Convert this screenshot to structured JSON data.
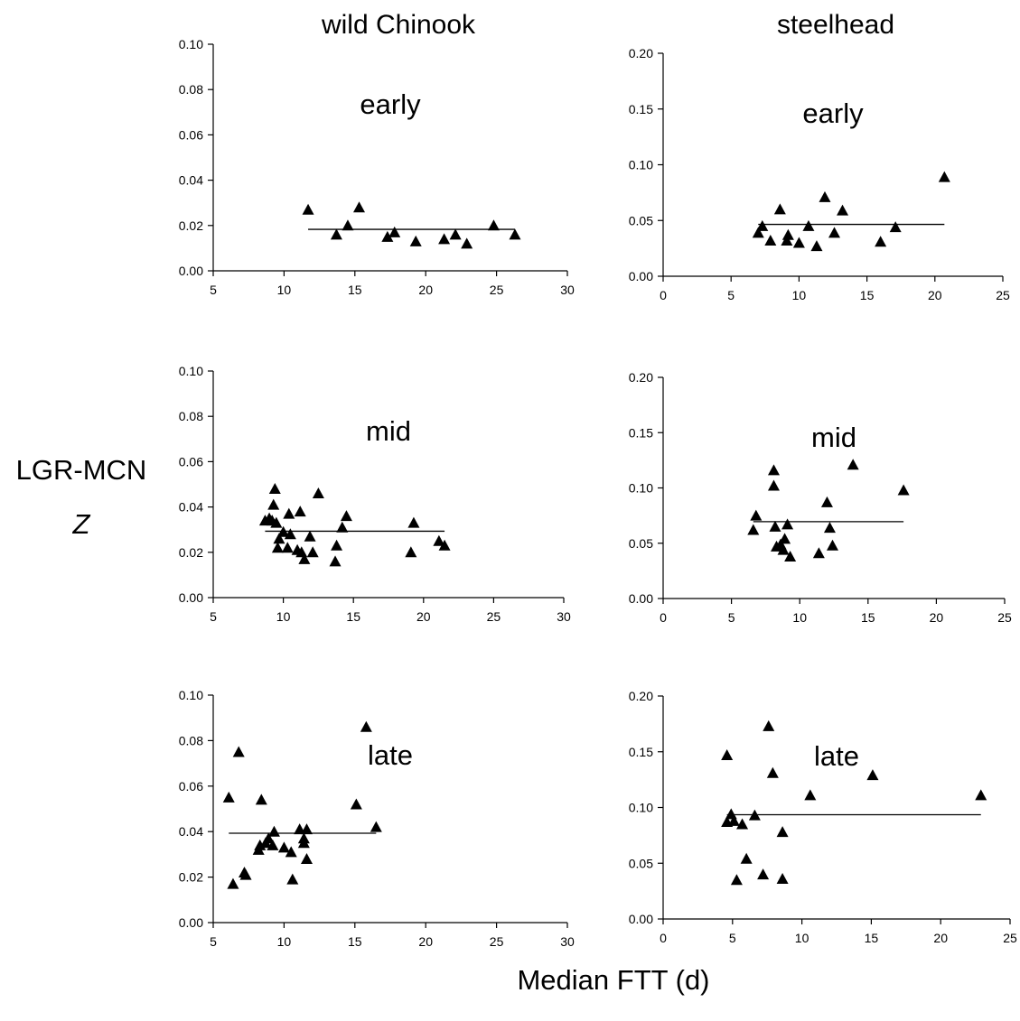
{
  "figure": {
    "column_titles": [
      "wild Chinook",
      "steelhead"
    ],
    "ylabel_line1": "LGR-MCN",
    "ylabel_line2": "Z",
    "xlabel": "Median FTT (d)"
  },
  "chart_data": [
    {
      "type": "scatter",
      "column": "wild Chinook",
      "title": "early",
      "xlim": [
        5,
        30
      ],
      "xticks": [
        5,
        10,
        15,
        20,
        25,
        30
      ],
      "ylim": [
        0,
        0.1
      ],
      "yticks": [
        0,
        0.02,
        0.04,
        0.06,
        0.08,
        0.1
      ],
      "ydecimals": 2,
      "points": [
        [
          11.7,
          0.027
        ],
        [
          13.7,
          0.016
        ],
        [
          14.5,
          0.02
        ],
        [
          15.3,
          0.028
        ],
        [
          17.3,
          0.015
        ],
        [
          17.8,
          0.017
        ],
        [
          19.3,
          0.013
        ],
        [
          21.3,
          0.014
        ],
        [
          22.1,
          0.016
        ],
        [
          22.9,
          0.012
        ],
        [
          24.8,
          0.02
        ],
        [
          26.3,
          0.016
        ]
      ],
      "fit": {
        "x": [
          11.7,
          26.3
        ],
        "y": [
          0.0183,
          0.0183
        ]
      },
      "grid": false,
      "legend": "none"
    },
    {
      "type": "scatter",
      "column": "steelhead",
      "title": "early",
      "xlim": [
        0,
        25
      ],
      "xticks": [
        0,
        5,
        10,
        15,
        20,
        25
      ],
      "ylim": [
        0,
        0.2
      ],
      "yticks": [
        0,
        0.05,
        0.1,
        0.15,
        0.2
      ],
      "ydecimals": 2,
      "points": [
        [
          7.0,
          0.039
        ],
        [
          7.3,
          0.045
        ],
        [
          7.9,
          0.032
        ],
        [
          8.6,
          0.06
        ],
        [
          9.1,
          0.032
        ],
        [
          9.2,
          0.037
        ],
        [
          10.0,
          0.03
        ],
        [
          10.7,
          0.045
        ],
        [
          11.3,
          0.027
        ],
        [
          11.9,
          0.071
        ],
        [
          12.6,
          0.039
        ],
        [
          13.2,
          0.059
        ],
        [
          16.0,
          0.031
        ],
        [
          17.1,
          0.044
        ],
        [
          20.7,
          0.089
        ]
      ],
      "fit": {
        "x": [
          7.0,
          20.7
        ],
        "y": [
          0.0465,
          0.0465
        ]
      },
      "grid": false,
      "legend": "none"
    },
    {
      "type": "scatter",
      "column": "wild Chinook",
      "title": "mid",
      "xlim": [
        5,
        30
      ],
      "xticks": [
        5,
        10,
        15,
        20,
        25,
        30
      ],
      "ylim": [
        0,
        0.1
      ],
      "yticks": [
        0,
        0.02,
        0.04,
        0.06,
        0.08,
        0.1
      ],
      "ydecimals": 2,
      "points": [
        [
          8.7,
          0.034
        ],
        [
          9.0,
          0.035
        ],
        [
          9.2,
          0.034
        ],
        [
          9.3,
          0.041
        ],
        [
          9.4,
          0.048
        ],
        [
          9.5,
          0.033
        ],
        [
          9.6,
          0.022
        ],
        [
          9.7,
          0.026
        ],
        [
          10.0,
          0.029
        ],
        [
          10.3,
          0.022
        ],
        [
          10.4,
          0.037
        ],
        [
          10.5,
          0.028
        ],
        [
          11.0,
          0.021
        ],
        [
          11.2,
          0.038
        ],
        [
          11.3,
          0.02
        ],
        [
          11.5,
          0.017
        ],
        [
          11.9,
          0.027
        ],
        [
          12.1,
          0.02
        ],
        [
          12.5,
          0.046
        ],
        [
          13.7,
          0.016
        ],
        [
          13.8,
          0.023
        ],
        [
          14.2,
          0.031
        ],
        [
          14.5,
          0.036
        ],
        [
          19.1,
          0.02
        ],
        [
          19.3,
          0.033
        ],
        [
          21.1,
          0.025
        ],
        [
          21.5,
          0.023
        ]
      ],
      "fit": {
        "x": [
          8.7,
          21.5
        ],
        "y": [
          0.0293,
          0.0293
        ]
      },
      "grid": false,
      "legend": "none"
    },
    {
      "type": "scatter",
      "column": "steelhead",
      "title": "mid",
      "xlim": [
        0,
        25
      ],
      "xticks": [
        0,
        5,
        10,
        15,
        20,
        25
      ],
      "ylim": [
        0,
        0.2
      ],
      "yticks": [
        0,
        0.05,
        0.1,
        0.15,
        0.2
      ],
      "ydecimals": 2,
      "points": [
        [
          6.6,
          0.062
        ],
        [
          6.8,
          0.075
        ],
        [
          8.1,
          0.116
        ],
        [
          8.1,
          0.102
        ],
        [
          8.2,
          0.065
        ],
        [
          8.3,
          0.047
        ],
        [
          8.6,
          0.049
        ],
        [
          8.8,
          0.044
        ],
        [
          8.9,
          0.054
        ],
        [
          9.1,
          0.067
        ],
        [
          9.3,
          0.038
        ],
        [
          11.4,
          0.041
        ],
        [
          12.0,
          0.087
        ],
        [
          12.2,
          0.064
        ],
        [
          12.4,
          0.048
        ],
        [
          13.9,
          0.121
        ],
        [
          17.6,
          0.098
        ]
      ],
      "fit": {
        "x": [
          6.6,
          17.6
        ],
        "y": [
          0.0695,
          0.0695
        ]
      },
      "grid": false,
      "legend": "none"
    },
    {
      "type": "scatter",
      "column": "wild Chinook",
      "title": "late",
      "xlim": [
        5,
        30
      ],
      "xticks": [
        5,
        10,
        15,
        20,
        25,
        30
      ],
      "ylim": [
        0,
        0.1
      ],
      "yticks": [
        0,
        0.02,
        0.04,
        0.06,
        0.08,
        0.1
      ],
      "ydecimals": 2,
      "points": [
        [
          6.1,
          0.055
        ],
        [
          6.4,
          0.017
        ],
        [
          6.8,
          0.075
        ],
        [
          7.2,
          0.022
        ],
        [
          7.3,
          0.021
        ],
        [
          8.2,
          0.032
        ],
        [
          8.3,
          0.034
        ],
        [
          8.4,
          0.054
        ],
        [
          8.7,
          0.035
        ],
        [
          8.9,
          0.037
        ],
        [
          9.2,
          0.034
        ],
        [
          9.3,
          0.04
        ],
        [
          10.0,
          0.033
        ],
        [
          10.5,
          0.031
        ],
        [
          10.6,
          0.019
        ],
        [
          11.1,
          0.041
        ],
        [
          11.4,
          0.035
        ],
        [
          11.4,
          0.037
        ],
        [
          11.6,
          0.028
        ],
        [
          11.6,
          0.041
        ],
        [
          15.1,
          0.052
        ],
        [
          15.8,
          0.086
        ],
        [
          16.5,
          0.042
        ]
      ],
      "fit": {
        "x": [
          6.1,
          16.5
        ],
        "y": [
          0.0393,
          0.0393
        ]
      },
      "grid": false,
      "legend": "none"
    },
    {
      "type": "scatter",
      "column": "steelhead",
      "title": "late",
      "xlim": [
        0,
        25
      ],
      "xticks": [
        0,
        5,
        10,
        15,
        20,
        25
      ],
      "ylim": [
        0,
        0.2
      ],
      "yticks": [
        0,
        0.05,
        0.1,
        0.15,
        0.2
      ],
      "ydecimals": 2,
      "points": [
        [
          4.6,
          0.147
        ],
        [
          4.6,
          0.087
        ],
        [
          4.9,
          0.094
        ],
        [
          5.1,
          0.088
        ],
        [
          5.3,
          0.035
        ],
        [
          5.7,
          0.085
        ],
        [
          6.0,
          0.054
        ],
        [
          6.6,
          0.093
        ],
        [
          7.2,
          0.04
        ],
        [
          7.6,
          0.173
        ],
        [
          7.9,
          0.131
        ],
        [
          8.6,
          0.078
        ],
        [
          8.6,
          0.036
        ],
        [
          10.6,
          0.111
        ],
        [
          15.1,
          0.129
        ],
        [
          22.9,
          0.111
        ]
      ],
      "fit": {
        "x": [
          4.6,
          22.9
        ],
        "y": [
          0.0935,
          0.0935
        ]
      },
      "grid": false,
      "legend": "none"
    }
  ]
}
